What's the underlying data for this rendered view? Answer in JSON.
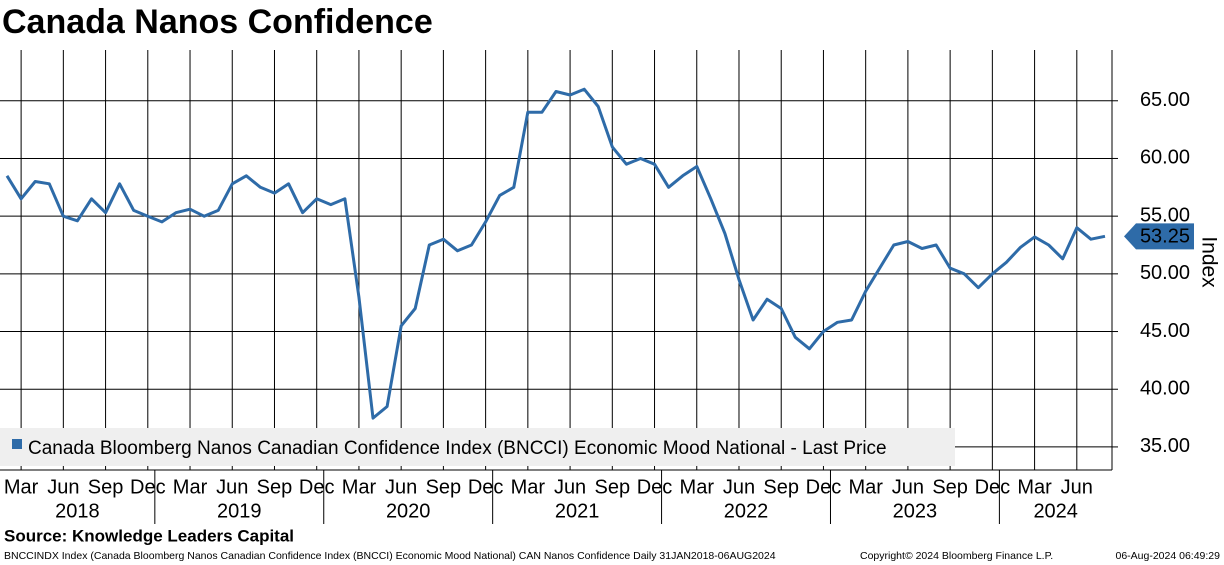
{
  "chart_data": {
    "type": "line",
    "title": "Canada Nanos Confidence",
    "y_axis_label": "Index",
    "source": "Source: Knowledge Leaders Capital",
    "footer": {
      "left": "BNCCINDX Index (Canada Bloomberg Nanos Canadian Confidence Index (BNCCI) Economic Mood National) CAN Nanos Confidence  Daily 31JAN2018-06AUG2024",
      "center": "Copyright© 2024 Bloomberg Finance L.P.",
      "right": "06-Aug-2024 06:49:29"
    },
    "x": [
      "2018-02",
      "2018-03",
      "2018-04",
      "2018-05",
      "2018-06",
      "2018-07",
      "2018-08",
      "2018-09",
      "2018-10",
      "2018-11",
      "2018-12",
      "2019-01",
      "2019-02",
      "2019-03",
      "2019-04",
      "2019-05",
      "2019-06",
      "2019-07",
      "2019-08",
      "2019-09",
      "2019-10",
      "2019-11",
      "2019-12",
      "2020-01",
      "2020-02",
      "2020-03",
      "2020-04",
      "2020-05",
      "2020-06",
      "2020-07",
      "2020-08",
      "2020-09",
      "2020-10",
      "2020-11",
      "2020-12",
      "2021-01",
      "2021-02",
      "2021-03",
      "2021-04",
      "2021-05",
      "2021-06",
      "2021-07",
      "2021-08",
      "2021-09",
      "2021-10",
      "2021-11",
      "2021-12",
      "2022-01",
      "2022-02",
      "2022-03",
      "2022-04",
      "2022-05",
      "2022-06",
      "2022-07",
      "2022-08",
      "2022-09",
      "2022-10",
      "2022-11",
      "2022-12",
      "2023-01",
      "2023-02",
      "2023-03",
      "2023-04",
      "2023-05",
      "2023-06",
      "2023-07",
      "2023-08",
      "2023-09",
      "2023-10",
      "2023-11",
      "2023-12",
      "2024-01",
      "2024-02",
      "2024-03",
      "2024-04",
      "2024-05",
      "2024-06",
      "2024-07",
      "2024-08"
    ],
    "series": [
      {
        "name": "Canada Bloomberg Nanos Canadian Confidence Index (BNCCI) Economic Mood National - Last Price",
        "color": "#2e6ba8",
        "values": [
          58.5,
          56.5,
          58.0,
          57.8,
          55.0,
          54.6,
          56.5,
          55.3,
          57.8,
          55.5,
          55.0,
          54.5,
          55.3,
          55.6,
          55.0,
          55.5,
          57.8,
          58.5,
          57.5,
          57.0,
          57.8,
          55.3,
          56.5,
          56.0,
          56.5,
          48.0,
          37.5,
          38.5,
          45.5,
          47.0,
          52.5,
          53.0,
          52.0,
          52.5,
          54.5,
          56.8,
          57.5,
          64.0,
          64.0,
          65.8,
          65.5,
          66.0,
          64.5,
          61.0,
          59.5,
          60.0,
          59.5,
          57.5,
          58.5,
          59.3,
          56.5,
          53.5,
          49.5,
          46.0,
          47.8,
          47.0,
          44.5,
          43.5,
          45.0,
          45.8,
          46.0,
          48.5,
          50.5,
          52.5,
          52.8,
          52.2,
          52.5,
          50.5,
          50.0,
          48.8,
          50.0,
          51.0,
          52.3,
          53.2,
          52.5,
          51.3,
          54.0,
          53.0,
          53.25
        ]
      }
    ],
    "xlim": [
      "2018-02",
      "2024-09"
    ],
    "xticks": [
      {
        "value": "2018-03",
        "label": "Mar"
      },
      {
        "value": "2018-06",
        "label": "Jun"
      },
      {
        "value": "2018-09",
        "label": "Sep"
      },
      {
        "value": "2018-12",
        "label": "Dec"
      },
      {
        "value": "2019-03",
        "label": "Mar"
      },
      {
        "value": "2019-06",
        "label": "Jun"
      },
      {
        "value": "2019-09",
        "label": "Sep"
      },
      {
        "value": "2019-12",
        "label": "Dec"
      },
      {
        "value": "2020-03",
        "label": "Mar"
      },
      {
        "value": "2020-06",
        "label": "Jun"
      },
      {
        "value": "2020-09",
        "label": "Sep"
      },
      {
        "value": "2020-12",
        "label": "Dec"
      },
      {
        "value": "2021-03",
        "label": "Mar"
      },
      {
        "value": "2021-06",
        "label": "Jun"
      },
      {
        "value": "2021-09",
        "label": "Sep"
      },
      {
        "value": "2021-12",
        "label": "Dec"
      },
      {
        "value": "2022-03",
        "label": "Mar"
      },
      {
        "value": "2022-06",
        "label": "Jun"
      },
      {
        "value": "2022-09",
        "label": "Sep"
      },
      {
        "value": "2022-12",
        "label": "Dec"
      },
      {
        "value": "2023-03",
        "label": "Mar"
      },
      {
        "value": "2023-06",
        "label": "Jun"
      },
      {
        "value": "2023-09",
        "label": "Sep"
      },
      {
        "value": "2023-12",
        "label": "Dec"
      },
      {
        "value": "2024-03",
        "label": "Mar"
      },
      {
        "value": "2024-06",
        "label": "Jun"
      }
    ],
    "years": [
      "2018",
      "2019",
      "2020",
      "2021",
      "2022",
      "2023",
      "2024"
    ],
    "ylim": [
      33,
      69.4
    ],
    "yticks": [
      {
        "value": 35,
        "label": "35.00"
      },
      {
        "value": 40,
        "label": "40.00"
      },
      {
        "value": 45,
        "label": "45.00"
      },
      {
        "value": 50,
        "label": "50.00"
      },
      {
        "value": 55,
        "label": "55.00"
      },
      {
        "value": 60,
        "label": "60.00"
      },
      {
        "value": 65,
        "label": "65.00"
      }
    ],
    "grid": true,
    "legend": "lower left"
  }
}
